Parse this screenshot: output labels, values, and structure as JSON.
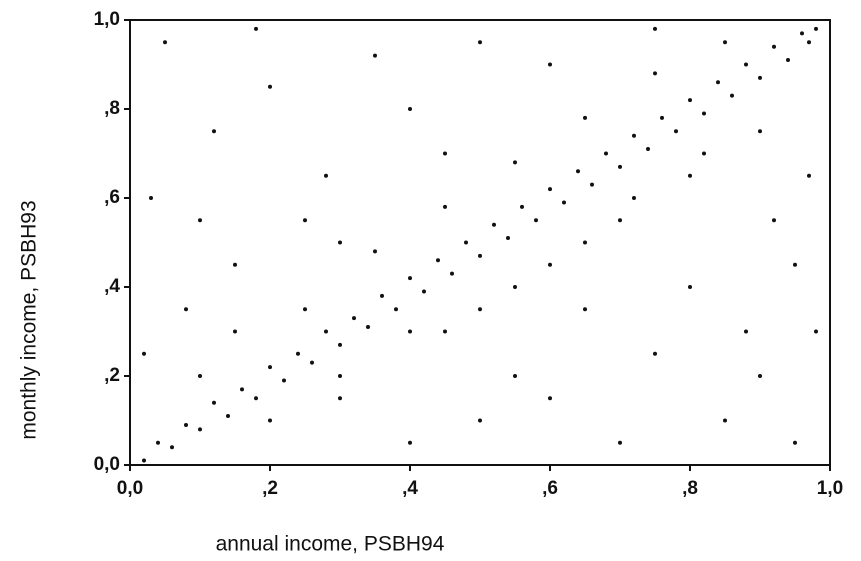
{
  "chart_data": {
    "type": "scatter",
    "x_label": "annual income, PSBH94",
    "y_label": "monthly income, PSBH93",
    "color": "#111111",
    "xlim": [
      0,
      1
    ],
    "ylim": [
      0,
      1
    ],
    "xticks": [
      {
        "value": 0,
        "label": "0,0"
      },
      {
        "value": 0.2,
        "label": ",2"
      },
      {
        "value": 0.4,
        "label": ",4"
      },
      {
        "value": 0.6,
        "label": ",6"
      },
      {
        "value": 0.8,
        "label": ",8"
      },
      {
        "value": 1,
        "label": "1,0"
      }
    ],
    "yticks": [
      {
        "value": 0,
        "label": "0,0"
      },
      {
        "value": 0.2,
        "label": ",2"
      },
      {
        "value": 0.4,
        "label": ",4"
      },
      {
        "value": 0.6,
        "label": ",6"
      },
      {
        "value": 0.8,
        "label": ",8"
      },
      {
        "value": 1,
        "label": "1,0"
      }
    ],
    "x": [
      0.02,
      0.04,
      0.06,
      0.08,
      0.1,
      0.12,
      0.14,
      0.16,
      0.18,
      0.2,
      0.22,
      0.24,
      0.26,
      0.28,
      0.3,
      0.32,
      0.34,
      0.36,
      0.38,
      0.4,
      0.42,
      0.44,
      0.46,
      0.48,
      0.5,
      0.52,
      0.54,
      0.56,
      0.58,
      0.6,
      0.62,
      0.64,
      0.66,
      0.68,
      0.7,
      0.72,
      0.74,
      0.76,
      0.78,
      0.8,
      0.82,
      0.84,
      0.86,
      0.88,
      0.9,
      0.92,
      0.94,
      0.96,
      0.97,
      0.98,
      0.1,
      0.2,
      0.25,
      0.3,
      0.35,
      0.4,
      0.45,
      0.5,
      0.55,
      0.6,
      0.65,
      0.7,
      0.75,
      0.8,
      0.85,
      0.9,
      0.15,
      0.3,
      0.45,
      0.55,
      0.65,
      0.72,
      0.82,
      0.05,
      0.12,
      0.03,
      0.2,
      0.35,
      0.28,
      0.15,
      0.08,
      0.4,
      0.5,
      0.45,
      0.25,
      0.6,
      0.02,
      0.95,
      0.9,
      0.85,
      0.75,
      0.7,
      0.95,
      0.6,
      0.65,
      0.8,
      0.55,
      0.97,
      0.92,
      0.5,
      0.4,
      0.3,
      0.18,
      0.75,
      0.98,
      0.88,
      0.1
    ],
    "values": [
      0.01,
      0.05,
      0.04,
      0.09,
      0.08,
      0.14,
      0.11,
      0.17,
      0.15,
      0.22,
      0.19,
      0.25,
      0.23,
      0.3,
      0.27,
      0.33,
      0.31,
      0.38,
      0.35,
      0.42,
      0.39,
      0.46,
      0.43,
      0.5,
      0.47,
      0.54,
      0.51,
      0.58,
      0.55,
      0.62,
      0.59,
      0.66,
      0.63,
      0.7,
      0.67,
      0.74,
      0.71,
      0.78,
      0.75,
      0.82,
      0.79,
      0.86,
      0.83,
      0.9,
      0.87,
      0.94,
      0.91,
      0.97,
      0.95,
      0.98,
      0.2,
      0.1,
      0.35,
      0.2,
      0.48,
      0.3,
      0.58,
      0.35,
      0.68,
      0.45,
      0.78,
      0.55,
      0.88,
      0.65,
      0.95,
      0.75,
      0.3,
      0.15,
      0.3,
      0.4,
      0.5,
      0.6,
      0.7,
      0.95,
      0.75,
      0.6,
      0.85,
      0.92,
      0.65,
      0.45,
      0.35,
      0.8,
      0.95,
      0.7,
      0.55,
      0.9,
      0.25,
      0.45,
      0.2,
      0.1,
      0.25,
      0.05,
      0.05,
      0.15,
      0.35,
      0.4,
      0.2,
      0.65,
      0.55,
      0.1,
      0.05,
      0.5,
      0.98,
      0.98,
      0.3,
      0.3,
      0.55
    ]
  }
}
